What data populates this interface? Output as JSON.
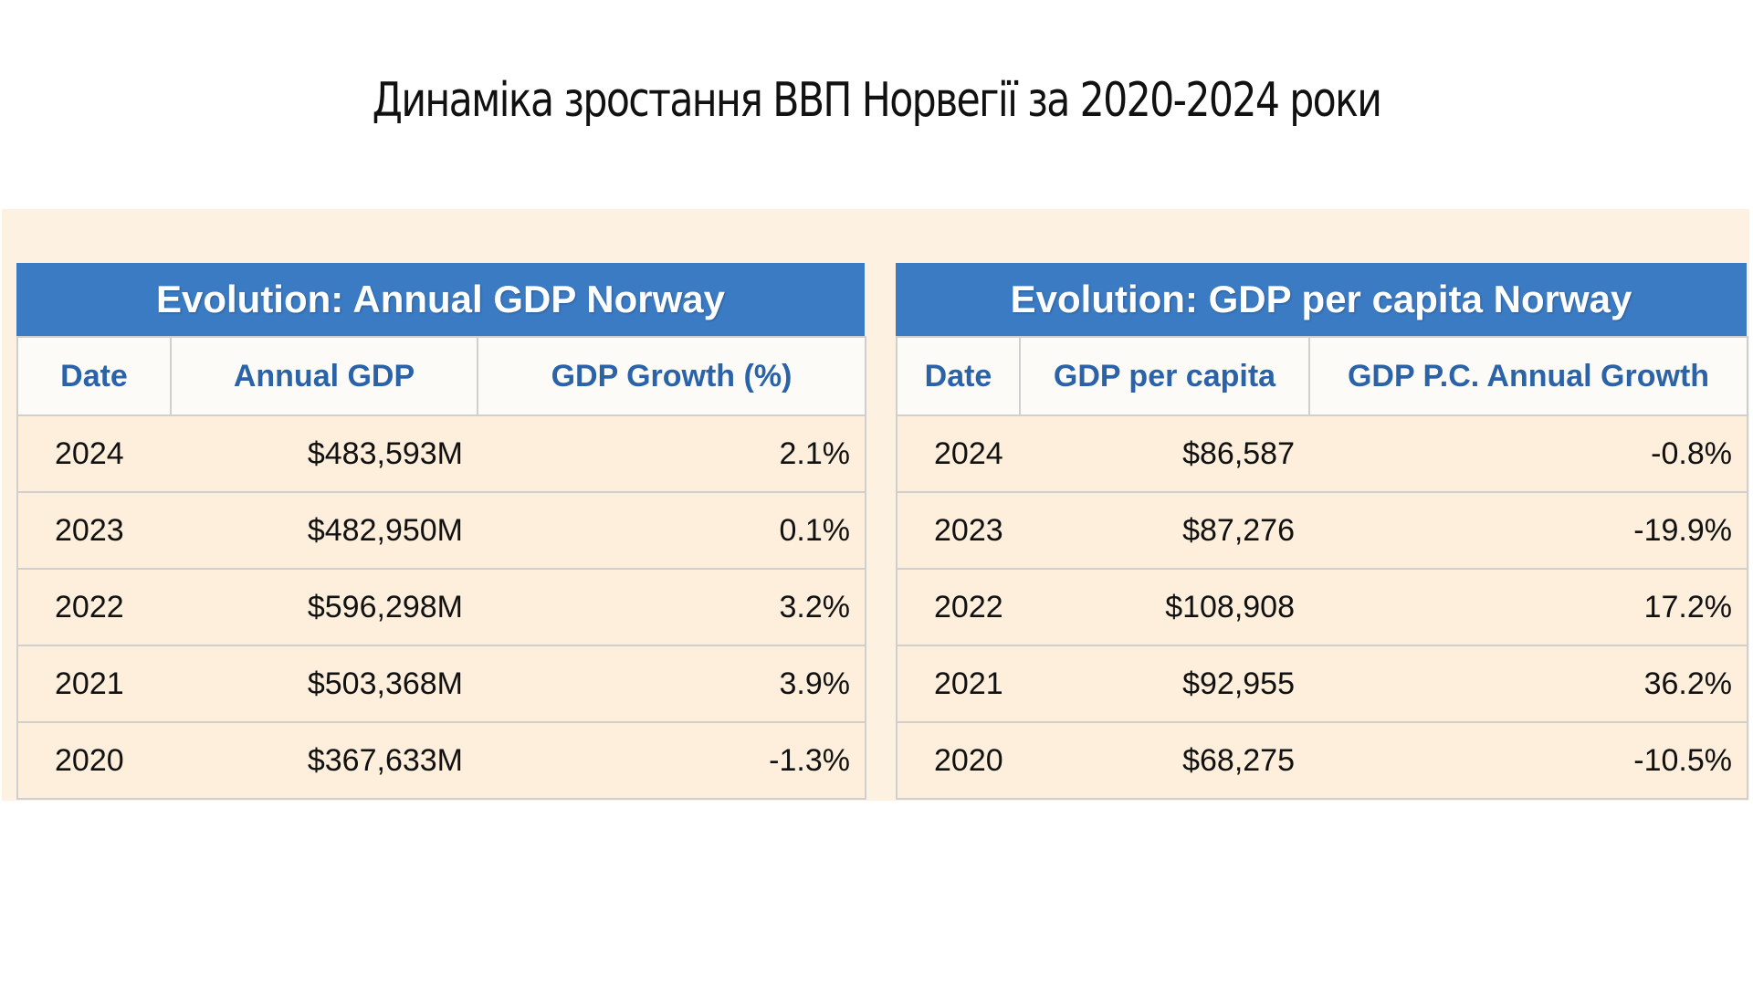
{
  "title": "Динаміка зростання ВВП Норвегії за 2020-2024 роки",
  "colors": {
    "header_bg": "#3b7bc4",
    "header_text": "#ffffff",
    "column_header_text": "#2b63a8",
    "panel_bg": "#fdf1e1"
  },
  "tables": [
    {
      "title": "Evolution: Annual GDP Norway",
      "columns": [
        "Date",
        "Annual GDP",
        "GDP Growth (%)"
      ],
      "rows": [
        [
          "2024",
          "$483,593M",
          "2.1%"
        ],
        [
          "2023",
          "$482,950M",
          "0.1%"
        ],
        [
          "2022",
          "$596,298M",
          "3.2%"
        ],
        [
          "2021",
          "$503,368M",
          "3.9%"
        ],
        [
          "2020",
          "$367,633M",
          "-1.3%"
        ]
      ]
    },
    {
      "title": "Evolution: GDP per capita Norway",
      "columns": [
        "Date",
        "GDP per capita",
        "GDP P.C. Annual Growth"
      ],
      "rows": [
        [
          "2024",
          "$86,587",
          "-0.8%"
        ],
        [
          "2023",
          "$87,276",
          "-19.9%"
        ],
        [
          "2022",
          "$108,908",
          "17.2%"
        ],
        [
          "2021",
          "$92,955",
          "36.2%"
        ],
        [
          "2020",
          "$68,275",
          "-10.5%"
        ]
      ]
    }
  ]
}
